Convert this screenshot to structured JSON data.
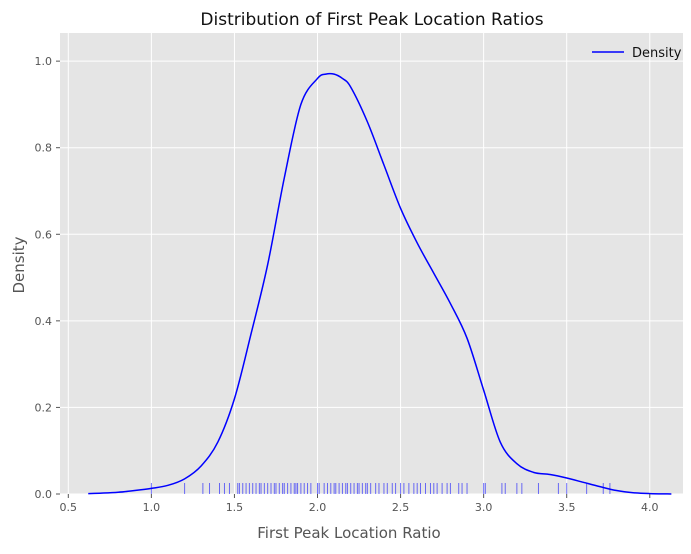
{
  "chart_data": {
    "type": "line",
    "title": "Distribution of First Peak Location Ratios",
    "xlabel": "First Peak Location Ratio",
    "ylabel": "Density",
    "xlim": [
      0.45,
      4.2
    ],
    "ylim": [
      0,
      1.065
    ],
    "xticks": [
      0.5,
      1.0,
      1.5,
      2.0,
      2.5,
      3.0,
      3.5,
      4.0
    ],
    "xtick_labels": [
      "0.5",
      "1.0",
      "1.5",
      "2.0",
      "2.5",
      "3.0",
      "3.5",
      "4.0"
    ],
    "yticks": [
      0.0,
      0.2,
      0.4,
      0.6,
      0.8,
      1.0
    ],
    "ytick_labels": [
      "0.0",
      "0.2",
      "0.4",
      "0.6",
      "0.8",
      "1.0"
    ],
    "grid": true,
    "legend_position": "top-right",
    "colors": {
      "background": "#e5e5e5",
      "grid": "#ffffff",
      "line": "#0000ff",
      "text": "#555555",
      "title": "#111111"
    },
    "series": [
      {
        "name": "Density",
        "x": [
          0.62,
          0.7,
          0.8,
          0.9,
          1.0,
          1.1,
          1.2,
          1.3,
          1.4,
          1.5,
          1.6,
          1.7,
          1.8,
          1.9,
          2.0,
          2.05,
          2.1,
          2.15,
          2.2,
          2.3,
          2.4,
          2.5,
          2.6,
          2.7,
          2.8,
          2.9,
          3.0,
          3.1,
          3.2,
          3.3,
          3.4,
          3.5,
          3.6,
          3.7,
          3.8,
          3.9,
          4.0,
          4.13
        ],
        "y": [
          0.001,
          0.002,
          0.004,
          0.008,
          0.013,
          0.02,
          0.035,
          0.065,
          0.12,
          0.22,
          0.37,
          0.53,
          0.73,
          0.9,
          0.96,
          0.97,
          0.97,
          0.96,
          0.94,
          0.86,
          0.76,
          0.66,
          0.58,
          0.51,
          0.44,
          0.36,
          0.24,
          0.12,
          0.07,
          0.05,
          0.045,
          0.037,
          0.027,
          0.017,
          0.008,
          0.003,
          0.001,
          0.0
        ]
      }
    ],
    "rug": {
      "values": [
        1.0,
        1.2,
        1.31,
        1.35,
        1.41,
        1.44,
        1.47,
        1.52,
        1.53,
        1.55,
        1.57,
        1.59,
        1.61,
        1.63,
        1.65,
        1.66,
        1.68,
        1.7,
        1.72,
        1.74,
        1.75,
        1.77,
        1.79,
        1.8,
        1.82,
        1.84,
        1.86,
        1.87,
        1.88,
        1.9,
        1.92,
        1.94,
        1.96,
        2.0,
        2.01,
        2.04,
        2.06,
        2.08,
        2.1,
        2.11,
        2.13,
        2.15,
        2.17,
        2.18,
        2.2,
        2.22,
        2.24,
        2.25,
        2.27,
        2.29,
        2.3,
        2.32,
        2.35,
        2.37,
        2.4,
        2.42,
        2.45,
        2.47,
        2.5,
        2.52,
        2.55,
        2.58,
        2.6,
        2.62,
        2.65,
        2.68,
        2.7,
        2.72,
        2.75,
        2.78,
        2.8,
        2.85,
        2.87,
        2.9,
        3.0,
        3.01,
        3.11,
        3.13,
        3.2,
        3.23,
        3.33,
        3.45,
        3.5,
        3.62,
        3.72,
        3.76
      ]
    }
  }
}
